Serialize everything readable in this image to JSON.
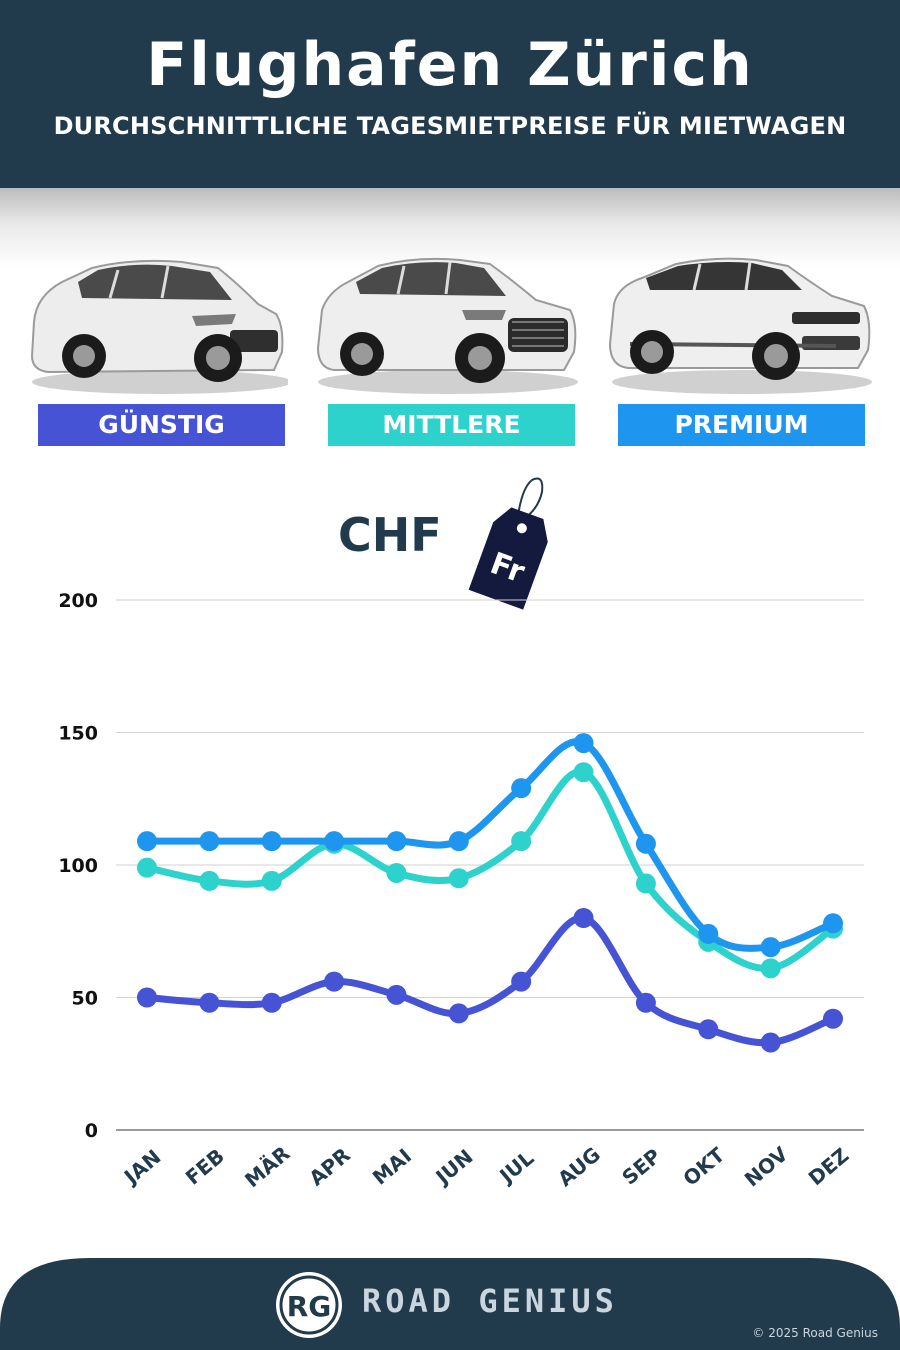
{
  "header": {
    "title": "Flughafen Zürich",
    "subtitle": "DURCHSCHNITTLICHE TAGESMIETPREISE FÜR MIETWAGEN"
  },
  "categories": [
    {
      "label": "GÜNSTIG",
      "color": "#4553d4"
    },
    {
      "label": "MITTLERE",
      "color": "#2dd2cc"
    },
    {
      "label": "PREMIUM",
      "color": "#1e96ef"
    }
  ],
  "currency": {
    "label": "CHF",
    "tag_text": "Fr"
  },
  "chart_data": {
    "type": "line",
    "x": [
      "JAN",
      "FEB",
      "MÄR",
      "APR",
      "MAI",
      "JUN",
      "JUL",
      "AUG",
      "SEP",
      "OKT",
      "NOV",
      "DEZ"
    ],
    "yticks": [
      0,
      50,
      100,
      150,
      200
    ],
    "ylim": [
      0,
      200
    ],
    "grid": true,
    "series": [
      {
        "name": "GÜNSTIG",
        "color": "#4553d4",
        "values": [
          50,
          48,
          48,
          56,
          51,
          44,
          56,
          80,
          48,
          38,
          33,
          42
        ]
      },
      {
        "name": "MITTLERE",
        "color": "#2dd2cc",
        "values": [
          99,
          94,
          94,
          108,
          97,
          95,
          109,
          135,
          93,
          71,
          61,
          76
        ]
      },
      {
        "name": "PREMIUM",
        "color": "#1e96ef",
        "values": [
          109,
          109,
          109,
          109,
          109,
          109,
          129,
          146,
          108,
          74,
          69,
          78
        ]
      }
    ]
  },
  "footer": {
    "brand_initials": "RG",
    "brand_name": "ROAD GENIUS",
    "copyright": "© 2025 Road Genius"
  }
}
